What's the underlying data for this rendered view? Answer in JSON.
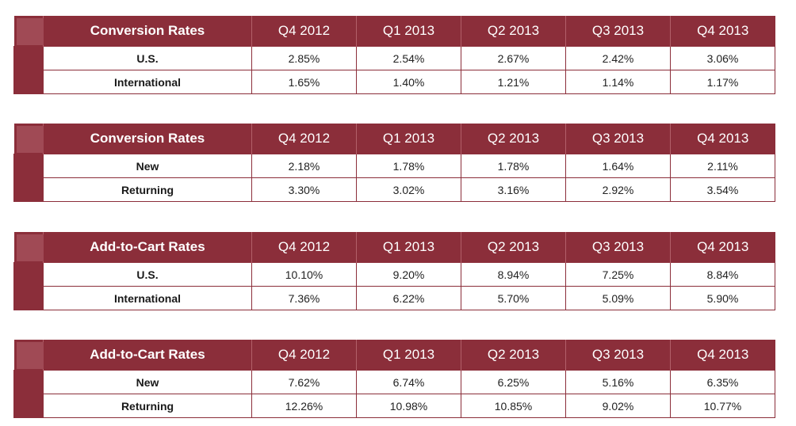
{
  "chart_data": [
    {
      "type": "table",
      "metric": "Conversion Rates",
      "columns": [
        "Q4 2012",
        "Q1 2013",
        "Q2 2013",
        "Q3 2013",
        "Q4 2013"
      ],
      "rows": [
        {
          "label": "U.S.",
          "values": [
            "2.85%",
            "2.54%",
            "2.67%",
            "2.42%",
            "3.06%"
          ]
        },
        {
          "label": "International",
          "values": [
            "1.65%",
            "1.40%",
            "1.21%",
            "1.14%",
            "1.17%"
          ]
        }
      ]
    },
    {
      "type": "table",
      "metric": "Conversion Rates",
      "columns": [
        "Q4 2012",
        "Q1 2013",
        "Q2 2013",
        "Q3 2013",
        "Q4 2013"
      ],
      "rows": [
        {
          "label": "New",
          "values": [
            "2.18%",
            "1.78%",
            "1.78%",
            "1.64%",
            "2.11%"
          ]
        },
        {
          "label": "Returning",
          "values": [
            "3.30%",
            "3.02%",
            "3.16%",
            "2.92%",
            "3.54%"
          ]
        }
      ]
    },
    {
      "type": "table",
      "metric": "Add-to-Cart Rates",
      "columns": [
        "Q4 2012",
        "Q1 2013",
        "Q2 2013",
        "Q3 2013",
        "Q4 2013"
      ],
      "rows": [
        {
          "label": "U.S.",
          "values": [
            "10.10%",
            "9.20%",
            "8.94%",
            "7.25%",
            "8.84%"
          ]
        },
        {
          "label": "International",
          "values": [
            "7.36%",
            "6.22%",
            "5.70%",
            "5.09%",
            "5.90%"
          ]
        }
      ]
    },
    {
      "type": "table",
      "metric": "Add-to-Cart Rates",
      "columns": [
        "Q4 2012",
        "Q1 2013",
        "Q2 2013",
        "Q3 2013",
        "Q4 2013"
      ],
      "rows": [
        {
          "label": "New",
          "values": [
            "7.62%",
            "6.74%",
            "6.25%",
            "5.16%",
            "6.35%"
          ]
        },
        {
          "label": "Returning",
          "values": [
            "12.26%",
            "10.98%",
            "10.85%",
            "9.02%",
            "10.77%"
          ]
        }
      ]
    }
  ],
  "colors": {
    "header": "#8b2e3a",
    "corner": "#a04a55",
    "text": "#222222"
  }
}
